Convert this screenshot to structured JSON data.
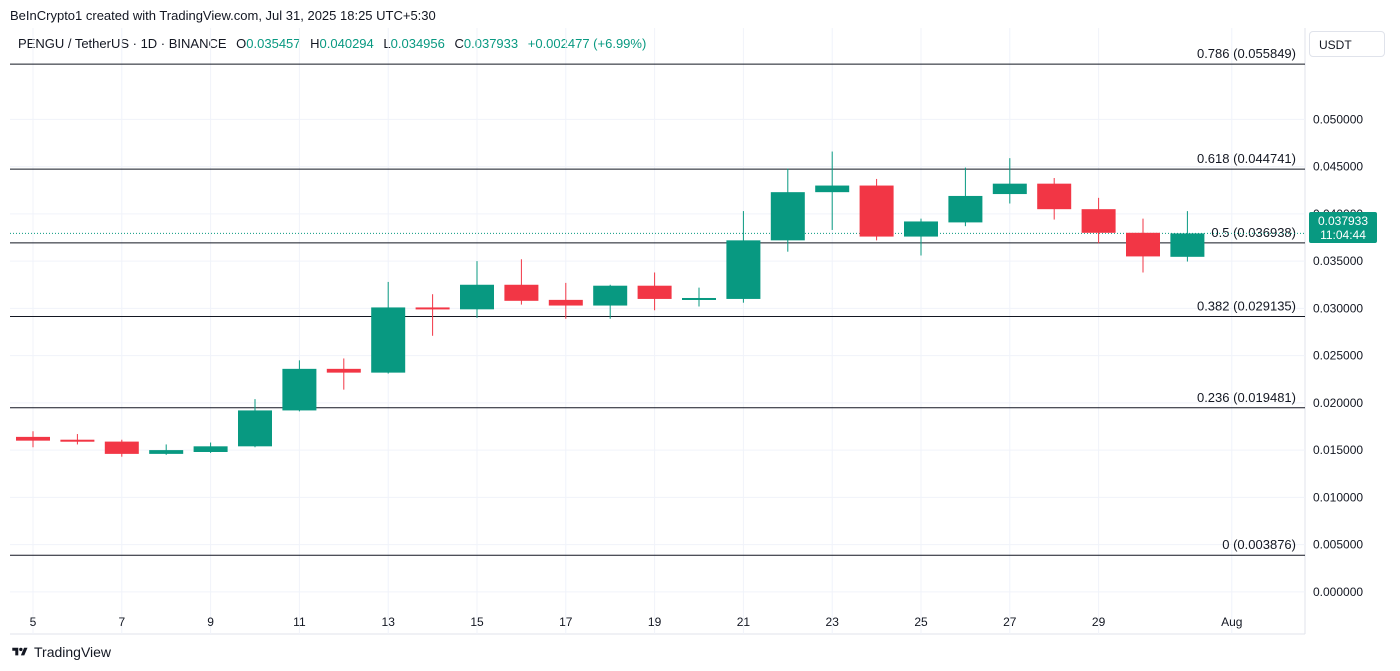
{
  "header": {
    "credit": "BeInCrypto1 created with TradingView.com, Jul 31, 2025 18:25 UTC+5:30",
    "symbol": "PENGU / TetherUS · 1D · BINANCE",
    "o_label": "O",
    "o_value": "0.035457",
    "h_label": "H",
    "h_value": "0.040294",
    "l_label": "L",
    "l_value": "0.034956",
    "c_label": "C",
    "c_value": "0.037933",
    "change": "+0.002477 (+6.99%)"
  },
  "currency_label": "USDT",
  "last_price": {
    "price": "0.037933",
    "countdown": "11:04:44"
  },
  "footer": {
    "brand": "TradingView"
  },
  "colors": {
    "up": "#089981",
    "down": "#f23645",
    "grid": "#f0f3fa",
    "fib": "#131722"
  },
  "chart_data": {
    "type": "candlestick",
    "ylim": [
      -0.0015,
      0.0565
    ],
    "y_ticks": [
      "0.000000",
      "0.005000",
      "0.010000",
      "0.015000",
      "0.020000",
      "0.025000",
      "0.030000",
      "0.035000",
      "0.040000",
      "0.045000",
      "0.050000"
    ],
    "x_ticks": [
      {
        "day": 5,
        "label": "5"
      },
      {
        "day": 7,
        "label": "7"
      },
      {
        "day": 9,
        "label": "9"
      },
      {
        "day": 11,
        "label": "11"
      },
      {
        "day": 13,
        "label": "13"
      },
      {
        "day": 15,
        "label": "15"
      },
      {
        "day": 17,
        "label": "17"
      },
      {
        "day": 19,
        "label": "19"
      },
      {
        "day": 21,
        "label": "21"
      },
      {
        "day": 23,
        "label": "23"
      },
      {
        "day": 25,
        "label": "25"
      },
      {
        "day": 27,
        "label": "27"
      },
      {
        "day": 29,
        "label": "29"
      },
      {
        "day": 32,
        "label": "Aug"
      }
    ],
    "candles": [
      {
        "day": 5,
        "o": 0.0164,
        "h": 0.017,
        "l": 0.0153,
        "c": 0.016
      },
      {
        "day": 6,
        "o": 0.0161,
        "h": 0.0167,
        "l": 0.0156,
        "c": 0.0159
      },
      {
        "day": 7,
        "o": 0.0159,
        "h": 0.0161,
        "l": 0.0143,
        "c": 0.0146
      },
      {
        "day": 8,
        "o": 0.0146,
        "h": 0.0156,
        "l": 0.0145,
        "c": 0.015
      },
      {
        "day": 9,
        "o": 0.0148,
        "h": 0.0158,
        "l": 0.0147,
        "c": 0.0154
      },
      {
        "day": 10,
        "o": 0.0154,
        "h": 0.0204,
        "l": 0.0153,
        "c": 0.0192
      },
      {
        "day": 11,
        "o": 0.0192,
        "h": 0.0245,
        "l": 0.0191,
        "c": 0.0236
      },
      {
        "day": 12,
        "o": 0.0236,
        "h": 0.0247,
        "l": 0.0214,
        "c": 0.0232
      },
      {
        "day": 13,
        "o": 0.0232,
        "h": 0.0328,
        "l": 0.0231,
        "c": 0.0301
      },
      {
        "day": 14,
        "o": 0.0301,
        "h": 0.0315,
        "l": 0.0271,
        "c": 0.0299
      },
      {
        "day": 15,
        "o": 0.0299,
        "h": 0.035,
        "l": 0.029,
        "c": 0.0325
      },
      {
        "day": 16,
        "o": 0.0325,
        "h": 0.0352,
        "l": 0.0304,
        "c": 0.0308
      },
      {
        "day": 17,
        "o": 0.0309,
        "h": 0.0327,
        "l": 0.0289,
        "c": 0.0303
      },
      {
        "day": 18,
        "o": 0.0303,
        "h": 0.0325,
        "l": 0.0289,
        "c": 0.0324
      },
      {
        "day": 19,
        "o": 0.0324,
        "h": 0.0338,
        "l": 0.0298,
        "c": 0.031
      },
      {
        "day": 20,
        "o": 0.031,
        "h": 0.0322,
        "l": 0.0302,
        "c": 0.0311
      },
      {
        "day": 21,
        "o": 0.031,
        "h": 0.0403,
        "l": 0.0306,
        "c": 0.0372
      },
      {
        "day": 22,
        "o": 0.0372,
        "h": 0.0448,
        "l": 0.036,
        "c": 0.0423
      },
      {
        "day": 23,
        "o": 0.0423,
        "h": 0.0466,
        "l": 0.0383,
        "c": 0.043
      },
      {
        "day": 24,
        "o": 0.043,
        "h": 0.0437,
        "l": 0.0372,
        "c": 0.0376
      },
      {
        "day": 25,
        "o": 0.0376,
        "h": 0.0395,
        "l": 0.0356,
        "c": 0.0392
      },
      {
        "day": 26,
        "o": 0.0391,
        "h": 0.0449,
        "l": 0.0387,
        "c": 0.0419
      },
      {
        "day": 27,
        "o": 0.0421,
        "h": 0.0459,
        "l": 0.0411,
        "c": 0.0432
      },
      {
        "day": 28,
        "o": 0.0432,
        "h": 0.0438,
        "l": 0.0394,
        "c": 0.0405
      },
      {
        "day": 29,
        "o": 0.0405,
        "h": 0.0417,
        "l": 0.0369,
        "c": 0.038
      },
      {
        "day": 30,
        "o": 0.038,
        "h": 0.0395,
        "l": 0.0338,
        "c": 0.0355
      },
      {
        "day": 31,
        "o": 0.035457,
        "h": 0.040294,
        "l": 0.034956,
        "c": 0.037933
      }
    ],
    "fib_levels": [
      {
        "value": 0.055849,
        "label": "0.786 (0.055849)"
      },
      {
        "value": 0.044741,
        "label": "0.618 (0.044741)"
      },
      {
        "value": 0.036938,
        "label": "0.5 (0.036938)"
      },
      {
        "value": 0.029135,
        "label": "0.382 (0.029135)"
      },
      {
        "value": 0.019481,
        "label": "0.236 (0.019481)"
      },
      {
        "value": 0.003876,
        "label": "0 (0.003876)"
      }
    ],
    "last_price_line": 0.037933,
    "grid": true
  }
}
